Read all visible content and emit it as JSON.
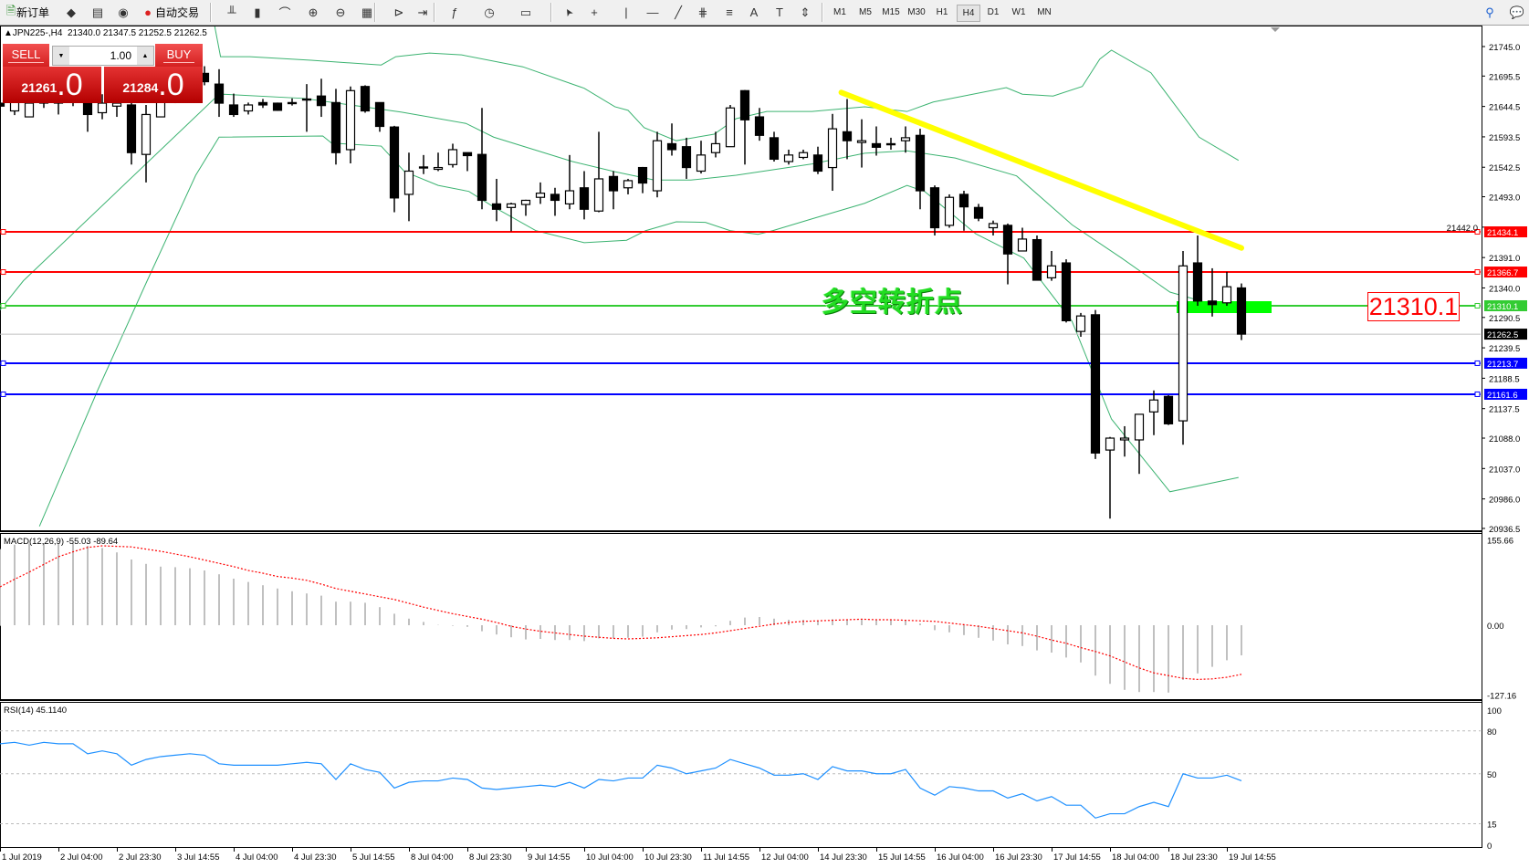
{
  "toolbar": {
    "new_order": "新订单",
    "auto_trading": "自动交易",
    "timeframes": [
      "M1",
      "M5",
      "M15",
      "M30",
      "H1",
      "H4",
      "D1",
      "W1",
      "MN"
    ],
    "active_timeframe": "H4",
    "icons": [
      "new-order-icon",
      "market-watch-icon",
      "navigator-icon",
      "signals-icon",
      "auto-trading-icon",
      "bar-chart-icon",
      "candlestick-icon",
      "line-chart-icon",
      "zoom-in-icon",
      "zoom-out-icon",
      "tile-windows-icon",
      "auto-scroll-icon",
      "chart-shift-icon",
      "indicators-icon",
      "periods-icon",
      "templates-icon",
      "cursor-icon",
      "crosshair-icon",
      "vertical-line-icon",
      "horizontal-line-icon",
      "trendline-icon",
      "fibonacci-icon",
      "fibo-fan-icon",
      "text-icon",
      "label-icon",
      "arrows-icon",
      "search-icon",
      "chat-icon"
    ]
  },
  "header": {
    "symbol": "JPN225-,H4",
    "ohlc": "21340.0 21347.5 21252.5 21262.5"
  },
  "trade_panel": {
    "sell_label": "SELL",
    "buy_label": "BUY",
    "lot": "1.00",
    "sell_price_main": "21261",
    "sell_price_frac": ".0",
    "buy_price_main": "21284",
    "buy_price_frac": ".0"
  },
  "annotation": {
    "text": "多空转折点",
    "price_box": "21310.1"
  },
  "chart_data": {
    "type": "candlestick",
    "price_axis": [
      "21745.0",
      "21695.5",
      "21644.5",
      "21593.5",
      "21542.5",
      "21493.0",
      "21442.0",
      "21391.0",
      "21340.0",
      "21290.5",
      "21239.5",
      "21188.5",
      "21137.5",
      "21088.0",
      "21037.0",
      "20986.0",
      "20936.5"
    ],
    "time_axis": [
      "1 Jul 2019",
      "2 Jul 04:00",
      "2 Jul 23:30",
      "3 Jul 14:55",
      "4 Jul 04:00",
      "4 Jul 23:30",
      "5 Jul 14:55",
      "8 Jul 04:00",
      "8 Jul 23:30",
      "9 Jul 14:55",
      "10 Jul 04:00",
      "10 Jul 23:30",
      "11 Jul 14:55",
      "12 Jul 04:00",
      "14 Jul 23:30",
      "15 Jul 14:55",
      "16 Jul 04:00",
      "16 Jul 23:30",
      "17 Jul 14:55",
      "18 Jul 04:00",
      "18 Jul 23:30",
      "19 Jul 14:55"
    ],
    "candles_ohlc": [
      [
        21650,
        21670,
        21622,
        21645
      ],
      [
        21637,
        21668,
        21630,
        21652
      ],
      [
        21627,
        21660,
        21627,
        21650
      ],
      [
        21655,
        21665,
        21642,
        21650
      ],
      [
        21650,
        21670,
        21631,
        21655
      ],
      [
        21660,
        21675,
        21645,
        21655
      ],
      [
        21660,
        21670,
        21602,
        21631
      ],
      [
        21634,
        21665,
        21623,
        21650
      ],
      [
        21645,
        21665,
        21627,
        21650
      ],
      [
        21647,
        21670,
        21547,
        21567
      ],
      [
        21564,
        21647,
        21517,
        21631
      ],
      [
        21627,
        21680,
        21627,
        21660
      ],
      [
        21665,
        21690,
        21650,
        21660
      ],
      [
        21662,
        21700,
        21655,
        21670
      ],
      [
        21700,
        21712,
        21680,
        21686
      ],
      [
        21682,
        21707,
        21627,
        21650
      ],
      [
        21647,
        21666,
        21627,
        21631
      ],
      [
        21637,
        21651,
        21631,
        21647
      ],
      [
        21651,
        21657,
        21642,
        21647
      ],
      [
        21650,
        21651,
        21637,
        21638
      ],
      [
        21651,
        21658,
        21646,
        21650
      ],
      [
        21657,
        21682,
        21602,
        21656
      ],
      [
        21662,
        21691,
        21627,
        21646
      ],
      [
        21651,
        21674,
        21547,
        21567
      ],
      [
        21572,
        21678,
        21549,
        21671
      ],
      [
        21678,
        21680,
        21634,
        21637
      ],
      [
        21651,
        21651,
        21602,
        21611
      ],
      [
        21610,
        21612,
        21467,
        21491
      ],
      [
        21497,
        21567,
        21452,
        21536
      ],
      [
        21543,
        21563,
        21531,
        21542
      ],
      [
        21539,
        21567,
        21536,
        21542
      ],
      [
        21547,
        21582,
        21542,
        21572
      ],
      [
        21567,
        21567,
        21536,
        21562
      ],
      [
        21564,
        21642,
        21472,
        21487
      ],
      [
        21481,
        21523,
        21452,
        21472
      ],
      [
        21475,
        21483,
        21435,
        21481
      ],
      [
        21480,
        21488,
        21461,
        21487
      ],
      [
        21492,
        21517,
        21481,
        21499
      ],
      [
        21497,
        21508,
        21461,
        21487
      ],
      [
        21481,
        21563,
        21472,
        21503
      ],
      [
        21508,
        21536,
        21455,
        21472
      ],
      [
        21469,
        21602,
        21467,
        21523
      ],
      [
        21527,
        21536,
        21472,
        21503
      ],
      [
        21508,
        21523,
        21497,
        21520
      ],
      [
        21542,
        21543,
        21499,
        21516
      ],
      [
        21503,
        21602,
        21492,
        21587
      ],
      [
        21582,
        21616,
        21562,
        21572
      ],
      [
        21577,
        21592,
        21523,
        21542
      ],
      [
        21536,
        21587,
        21532,
        21563
      ],
      [
        21567,
        21602,
        21559,
        21582
      ],
      [
        21577,
        21647,
        21577,
        21642
      ],
      [
        21671,
        21672,
        21547,
        21622
      ],
      [
        21627,
        21642,
        21587,
        21596
      ],
      [
        21592,
        21602,
        21552,
        21556
      ],
      [
        21552,
        21572,
        21547,
        21563
      ],
      [
        21559,
        21572,
        21556,
        21567
      ],
      [
        21563,
        21577,
        21531,
        21536
      ],
      [
        21542,
        21632,
        21503,
        21607
      ],
      [
        21602,
        21657,
        21556,
        21587
      ],
      [
        21584,
        21623,
        21542,
        21587
      ],
      [
        21582,
        21611,
        21562,
        21576
      ],
      [
        21582,
        21592,
        21572,
        21582
      ],
      [
        21587,
        21611,
        21567,
        21592
      ],
      [
        21596,
        21607,
        21472,
        21503
      ],
      [
        21508,
        21512,
        21428,
        21441
      ],
      [
        21445,
        21497,
        21441,
        21492
      ],
      [
        21497,
        21503,
        21436,
        21476
      ],
      [
        21475,
        21481,
        21452,
        21457
      ],
      [
        21441,
        21453,
        21428,
        21448
      ],
      [
        21445,
        21448,
        21346,
        21397
      ],
      [
        21402,
        21441,
        21402,
        21422
      ],
      [
        21421,
        21428,
        21353,
        21353
      ],
      [
        21357,
        21402,
        21352,
        21377
      ],
      [
        21382,
        21388,
        21282,
        21285
      ],
      [
        21267,
        21298,
        21258,
        21293
      ],
      [
        21295,
        21303,
        21053,
        21063
      ],
      [
        21068,
        21090,
        20953,
        21088
      ],
      [
        21085,
        21108,
        21057,
        21088
      ],
      [
        21085,
        21128,
        21028,
        21128
      ],
      [
        21132,
        21168,
        21093,
        21152
      ],
      [
        21158,
        21160,
        21110,
        21112
      ],
      [
        21117,
        21402,
        21077,
        21377
      ],
      [
        21382,
        21428,
        21310,
        21318
      ],
      [
        21318,
        21373,
        21292,
        21312
      ],
      [
        21315,
        21367,
        21310,
        21342
      ],
      [
        21340,
        21347.5,
        21252.5,
        21262.5
      ]
    ],
    "bollinger": {
      "upper": [
        [
          14.6,
          21792
        ],
        [
          15.1,
          21728
        ],
        [
          17.1,
          21728
        ],
        [
          21.3,
          21722
        ],
        [
          26.1,
          21714
        ],
        [
          27.1,
          21728
        ],
        [
          29.4,
          21734
        ],
        [
          31.6,
          21731
        ],
        [
          35.8,
          21711
        ],
        [
          40,
          21675
        ],
        [
          42.1,
          21644
        ],
        [
          43,
          21638
        ],
        [
          44.1,
          21609
        ],
        [
          46.3,
          21587
        ],
        [
          48.9,
          21598
        ],
        [
          50.4,
          21624
        ],
        [
          52.5,
          21636
        ],
        [
          55.6,
          21636
        ],
        [
          59.2,
          21644
        ],
        [
          62.1,
          21636
        ],
        [
          63.9,
          21652
        ],
        [
          68.9,
          21676
        ],
        [
          70,
          21665
        ],
        [
          72.1,
          21662
        ],
        [
          74.1,
          21678
        ],
        [
          75.3,
          21724
        ],
        [
          76.1,
          21739
        ],
        [
          78.8,
          21701
        ],
        [
          82.1,
          21593
        ],
        [
          84.8,
          21554
        ]
      ],
      "middle": [
        [
          0,
          21303
        ],
        [
          1.6,
          21352
        ],
        [
          14.7,
          21658
        ],
        [
          15.3,
          21665
        ],
        [
          20.8,
          21658
        ],
        [
          27.5,
          21635
        ],
        [
          31.9,
          21616
        ],
        [
          33.8,
          21593
        ],
        [
          39.2,
          21552
        ],
        [
          42.1,
          21535
        ],
        [
          44.8,
          21521
        ],
        [
          47.3,
          21521
        ],
        [
          50.4,
          21529
        ],
        [
          55.6,
          21548
        ],
        [
          59.2,
          21566
        ],
        [
          62.1,
          21570
        ],
        [
          65.4,
          21558
        ],
        [
          69.6,
          21528
        ],
        [
          73.4,
          21446
        ],
        [
          76.8,
          21390
        ],
        [
          80.1,
          21333
        ],
        [
          84.8,
          21300
        ]
      ],
      "lower": [
        [
          2.7,
          20940
        ],
        [
          6.7,
          21169
        ],
        [
          10,
          21348
        ],
        [
          13.4,
          21529
        ],
        [
          15,
          21593
        ],
        [
          22.1,
          21595
        ],
        [
          22.7,
          21583
        ],
        [
          26.1,
          21578
        ],
        [
          27.7,
          21535
        ],
        [
          30,
          21512
        ],
        [
          32.1,
          21502
        ],
        [
          33.8,
          21476
        ],
        [
          36.7,
          21436
        ],
        [
          40,
          21416
        ],
        [
          42.9,
          21420
        ],
        [
          44.2,
          21436
        ],
        [
          46.3,
          21451
        ],
        [
          48.3,
          21450
        ],
        [
          50,
          21436
        ],
        [
          51.9,
          21430
        ],
        [
          52.9,
          21436
        ],
        [
          55.6,
          21456
        ],
        [
          59.2,
          21482
        ],
        [
          62.1,
          21512
        ],
        [
          63.3,
          21502
        ],
        [
          66.8,
          21431
        ],
        [
          70.1,
          21390
        ],
        [
          73.4,
          21284
        ],
        [
          76.1,
          21120
        ],
        [
          80.1,
          20998
        ],
        [
          84.8,
          21022
        ]
      ]
    },
    "trendline": [
      [
        57.6,
        21668
      ],
      [
        85,
        21407
      ]
    ],
    "levels": [
      {
        "price": "21434.1",
        "color": "#ff0000"
      },
      {
        "price": "21366.7",
        "color": "#ff0000"
      },
      {
        "price": "21310.1",
        "color": "#33cc33"
      },
      {
        "price": "21213.7",
        "color": "#0000ff"
      },
      {
        "price": "21161.6",
        "color": "#0000ff"
      }
    ],
    "bid": {
      "price": "21262.5",
      "color": "#000000"
    },
    "colors": {
      "band": "#3cb371",
      "trend": "#ffff00",
      "macd_hist": "#c0c0c0",
      "macd_signal": "#ff0000",
      "rsi": "#1e90ff",
      "zone": "#00ff00"
    },
    "macd": {
      "label": "MACD(12,26,9) -55.03 -89.64",
      "axis": [
        "155.66",
        "0.00",
        "-127.16"
      ],
      "histogram": [
        139,
        147,
        149,
        150,
        150,
        150,
        145,
        141,
        133,
        120,
        112,
        107,
        106,
        104,
        100,
        93,
        85,
        79,
        73,
        67,
        62,
        58,
        54,
        43,
        43,
        41,
        33,
        21,
        12,
        6,
        0.5,
        -1,
        -3,
        -11,
        -17,
        -22,
        -26,
        -25,
        -27,
        -27,
        -29,
        -24,
        -24,
        -23,
        -21,
        -13,
        -8,
        -7,
        -4,
        -2,
        8,
        14,
        15,
        12,
        10,
        10,
        8,
        11,
        10,
        11,
        10,
        10,
        10,
        3,
        -9,
        -13,
        -18,
        -23,
        -28,
        -35,
        -38,
        -46,
        -50,
        -59,
        -68,
        -92,
        -107,
        -118,
        -122,
        -122,
        -123,
        -100,
        -88,
        -76,
        -64,
        -55.03
      ],
      "signal": [
        70,
        84,
        97,
        111,
        125,
        134,
        142,
        145,
        144,
        143,
        139,
        135,
        130,
        125,
        119,
        113,
        107,
        100,
        95,
        89,
        86,
        82,
        75,
        67,
        62,
        57,
        52,
        47,
        40,
        33,
        27,
        21,
        16,
        11,
        5,
        -2,
        -7,
        -11,
        -14,
        -17,
        -20,
        -22,
        -24,
        -25,
        -24,
        -23,
        -21,
        -19,
        -17,
        -14,
        -10,
        -6,
        -2,
        2,
        5,
        7,
        8,
        9,
        10,
        11,
        10,
        10,
        9,
        8,
        7,
        4,
        1,
        -2,
        -6,
        -10,
        -14,
        -20,
        -27,
        -33,
        -41,
        -48,
        -56,
        -67,
        -78,
        -87,
        -92,
        -97,
        -99,
        -98,
        -95,
        -89.64
      ]
    },
    "rsi": {
      "label": "RSI(14) 45.1140",
      "axis": [
        "100",
        "80",
        "50",
        "15",
        "0"
      ],
      "levels": [
        80,
        50,
        15
      ],
      "values": [
        71,
        72,
        70,
        72,
        71,
        71,
        64,
        66,
        64,
        56,
        60,
        62,
        63,
        64,
        63,
        57,
        56,
        56,
        56,
        56,
        57,
        58,
        57,
        46,
        57,
        53,
        51,
        40,
        44,
        45,
        45,
        47,
        46,
        40,
        39,
        40,
        41,
        42,
        41,
        44,
        40,
        46,
        45,
        47,
        47,
        56,
        54,
        50,
        52,
        54,
        60,
        57,
        54,
        49,
        49,
        50,
        46,
        55,
        52,
        52,
        50,
        50,
        53,
        40,
        35,
        41,
        40,
        38,
        38,
        33,
        36,
        31,
        34,
        28,
        28,
        19,
        22,
        22,
        27,
        30,
        27,
        50,
        47,
        47,
        49,
        45.114
      ]
    }
  }
}
